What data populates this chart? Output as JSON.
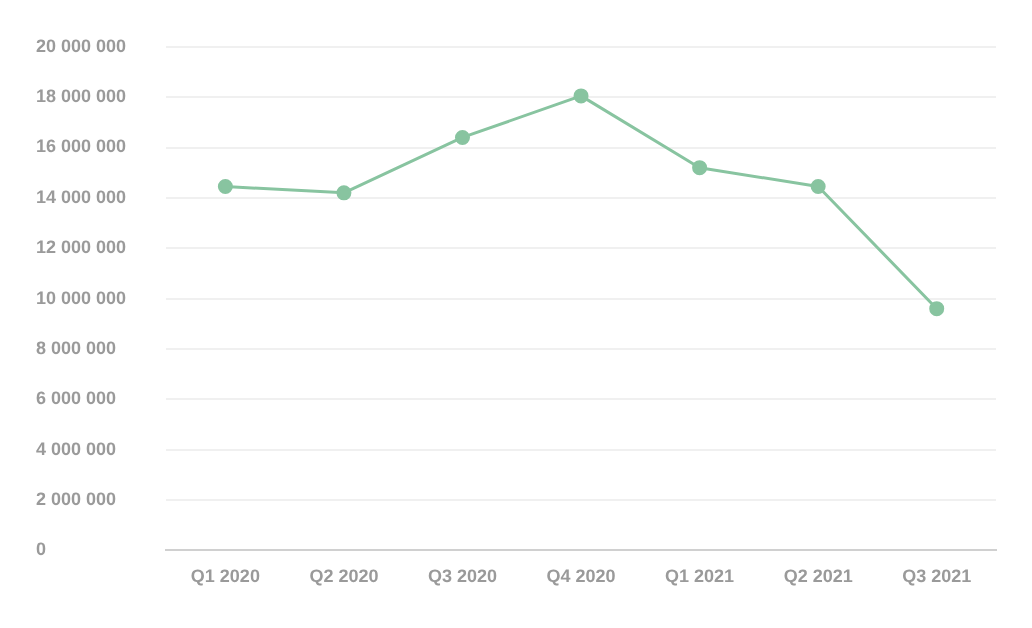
{
  "chart_data": {
    "type": "line",
    "categories": [
      "Q1 2020",
      "Q2 2020",
      "Q3 2020",
      "Q4 2020",
      "Q1 2021",
      "Q2 2021",
      "Q3 2021"
    ],
    "series": [
      {
        "color": "#88c4a0",
        "values": [
          14450000,
          14200000,
          16400000,
          18050000,
          15200000,
          14450000,
          9600000
        ]
      }
    ],
    "ylim": [
      0,
      20000000
    ],
    "yticks": [
      {
        "value": 0,
        "label": "0"
      },
      {
        "value": 2000000,
        "label": "2 000 000"
      },
      {
        "value": 4000000,
        "label": "4 000 000"
      },
      {
        "value": 6000000,
        "label": "6 000 000"
      },
      {
        "value": 8000000,
        "label": "8 000 000"
      },
      {
        "value": 10000000,
        "label": "10 000 000"
      },
      {
        "value": 12000000,
        "label": "12 000 000"
      },
      {
        "value": 14000000,
        "label": "14 000 000"
      },
      {
        "value": 16000000,
        "label": "16 000 000"
      },
      {
        "value": 18000000,
        "label": "18 000 000"
      },
      {
        "value": 20000000,
        "label": "20 000 000"
      }
    ],
    "grid": "y",
    "marker": "circle",
    "legend": false
  }
}
